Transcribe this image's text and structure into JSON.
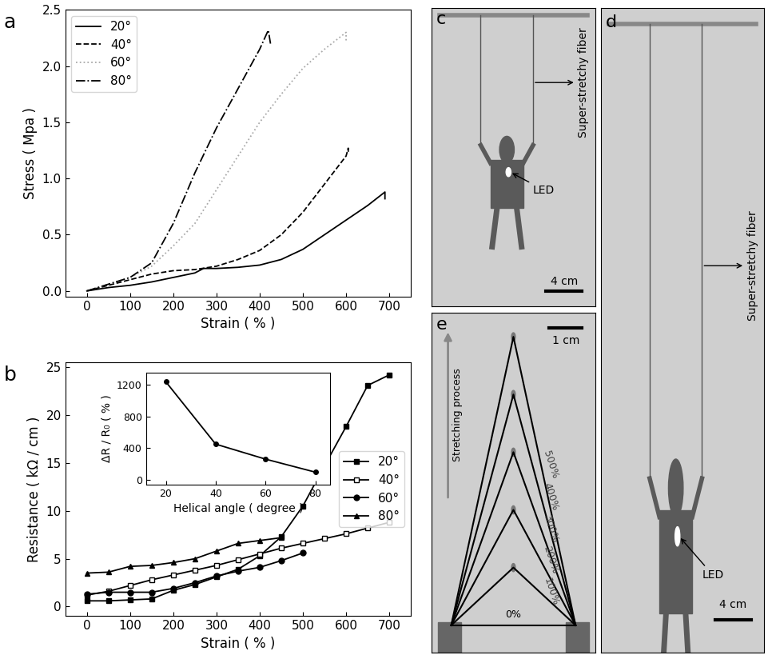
{
  "chart_data": [
    {
      "type": "line",
      "panel_label": "a",
      "x_label": "Strain ( % )",
      "y_label": "Stress ( Mpa )",
      "xlim": [
        -50,
        750
      ],
      "xticks": [
        0,
        100,
        200,
        300,
        400,
        500,
        600,
        700
      ],
      "ylim": [
        -0.05,
        2.5
      ],
      "yticks": [
        {
          "value": 0,
          "label": "0.0"
        },
        {
          "value": 0.5,
          "label": "0.5"
        },
        {
          "value": 1,
          "label": "1.0"
        },
        {
          "value": 1.5,
          "label": "1.5"
        },
        {
          "value": 2,
          "label": "2.0"
        },
        {
          "value": 2.5,
          "label": "2.5"
        }
      ],
      "legend": "upper left",
      "series": [
        {
          "name": "20°",
          "color": "#000000",
          "line_style": "solid",
          "marker": "none",
          "x": [
            0,
            50,
            100,
            150,
            200,
            250,
            270,
            300,
            350,
            400,
            450,
            500,
            550,
            600,
            650,
            690,
            690
          ],
          "values": [
            0,
            0.03,
            0.05,
            0.08,
            0.12,
            0.16,
            0.2,
            0.2,
            0.21,
            0.23,
            0.28,
            0.37,
            0.5,
            0.63,
            0.76,
            0.88,
            0.82
          ]
        },
        {
          "name": "40°",
          "color": "#000000",
          "line_style": "dashed",
          "marker": "none",
          "x": [
            0,
            50,
            100,
            150,
            200,
            250,
            300,
            350,
            400,
            450,
            500,
            550,
            600,
            605,
            605
          ],
          "values": [
            0,
            0.05,
            0.1,
            0.15,
            0.18,
            0.19,
            0.22,
            0.28,
            0.36,
            0.5,
            0.7,
            0.95,
            1.2,
            1.27,
            1.22
          ]
        },
        {
          "name": "60°",
          "color": "#aaaaaa",
          "line_style": "dotted",
          "marker": "none",
          "x": [
            0,
            50,
            100,
            150,
            200,
            250,
            300,
            350,
            400,
            450,
            500,
            550,
            600,
            600
          ],
          "values": [
            0,
            0.06,
            0.12,
            0.22,
            0.4,
            0.6,
            0.9,
            1.2,
            1.5,
            1.75,
            1.98,
            2.15,
            2.3,
            2.22
          ]
        },
        {
          "name": "80°",
          "color": "#000000",
          "line_style": "dashdot",
          "marker": "none",
          "x": [
            0,
            50,
            100,
            150,
            200,
            250,
            300,
            350,
            400,
            420,
            425
          ],
          "values": [
            0,
            0.06,
            0.12,
            0.25,
            0.6,
            1.05,
            1.45,
            1.8,
            2.15,
            2.32,
            2.2
          ]
        }
      ]
    },
    {
      "type": "line",
      "panel_label": "b",
      "x_label": "Strain ( % )",
      "y_label": "Resistance ( kΩ / cm )",
      "xlim": [
        -50,
        750
      ],
      "xticks": [
        0,
        100,
        200,
        300,
        400,
        500,
        600,
        700
      ],
      "ylim": [
        -1,
        25.5
      ],
      "yticks": [
        0,
        5,
        10,
        15,
        20,
        25
      ],
      "legend": "center right",
      "series": [
        {
          "name": "20°",
          "color": "#000000",
          "line_style": "solid",
          "marker": "square",
          "x": [
            0,
            50,
            100,
            150,
            200,
            250,
            300,
            350,
            400,
            450,
            500,
            550,
            600,
            650,
            700
          ],
          "values": [
            0.6,
            0.6,
            0.7,
            0.8,
            1.7,
            2.3,
            3.1,
            3.9,
            5.3,
            7.3,
            10.5,
            14.7,
            18.8,
            23.1,
            24.2
          ]
        },
        {
          "name": "40°",
          "color": "#000000",
          "line_style": "solid",
          "marker": "open_square",
          "x": [
            0,
            50,
            100,
            150,
            200,
            250,
            300,
            350,
            400,
            450,
            500,
            550,
            600,
            650,
            700
          ],
          "values": [
            1.2,
            1.6,
            2.2,
            2.8,
            3.3,
            3.8,
            4.3,
            4.9,
            5.5,
            6.1,
            6.6,
            7.1,
            7.6,
            8.2,
            8.8
          ]
        },
        {
          "name": "60°",
          "color": "#000000",
          "line_style": "solid",
          "marker": "circle",
          "x": [
            0,
            50,
            100,
            150,
            200,
            250,
            300,
            350,
            400,
            450,
            500
          ],
          "values": [
            1.3,
            1.5,
            1.5,
            1.5,
            1.9,
            2.5,
            3.2,
            3.7,
            4.1,
            4.8,
            5.6
          ]
        },
        {
          "name": "80°",
          "color": "#000000",
          "line_style": "solid",
          "marker": "triangle",
          "x": [
            0,
            50,
            100,
            150,
            200,
            250,
            300,
            350,
            400,
            450
          ],
          "values": [
            3.5,
            3.6,
            4.2,
            4.3,
            4.6,
            5.0,
            5.8,
            6.6,
            6.9,
            7.2
          ]
        }
      ]
    },
    {
      "type": "line",
      "x_label": "Helical angle ( degree )",
      "y_label": "ΔR / R₀ ( % )",
      "xlim": [
        12,
        86
      ],
      "xticks": [
        20,
        40,
        60,
        80
      ],
      "ylim": [
        -60,
        1360
      ],
      "yticks": [
        0,
        400,
        800,
        1200
      ],
      "series": [
        {
          "color": "#000000",
          "line_style": "solid",
          "marker": "circle",
          "x": [
            20,
            40,
            60,
            80
          ],
          "values": [
            1240,
            450,
            260,
            95
          ]
        }
      ]
    }
  ],
  "photos": [
    {
      "panel_label": "c",
      "labels": [
        "Super-stretchy fiber",
        "LED"
      ],
      "scale_bar": "4 cm"
    },
    {
      "panel_label": "d",
      "labels": [
        "Super-stretchy fiber",
        "LED"
      ],
      "scale_bar": "4 cm"
    },
    {
      "panel_label": "e",
      "arrow_label": "Stretching process",
      "scale_bar": "1 cm",
      "strain_labels": [
        "0%",
        "100%",
        "200%",
        "300%",
        "400%",
        "500%"
      ]
    }
  ]
}
